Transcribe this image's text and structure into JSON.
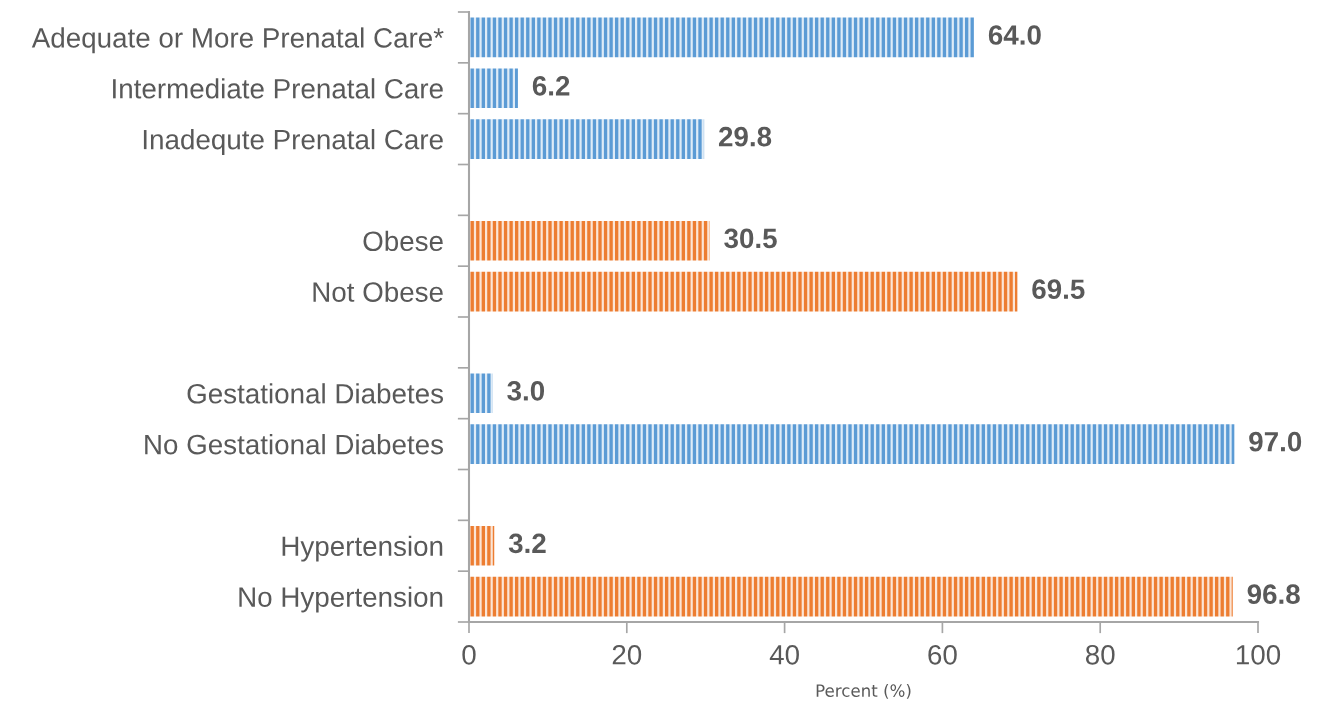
{
  "chart_data": {
    "type": "bar",
    "orientation": "horizontal",
    "categories": [
      "Adequate or More Prenatal Care*",
      "Intermediate Prenatal Care",
      "Inadequte Prenatal Care",
      null,
      "Obese",
      "Not Obese",
      null,
      "Gestational Diabetes",
      "No Gestational Diabetes",
      null,
      "Hypertension",
      "No Hypertension"
    ],
    "values": [
      64.0,
      6.2,
      29.8,
      null,
      30.5,
      69.5,
      null,
      3.0,
      97.0,
      null,
      3.2,
      96.8
    ],
    "value_labels": [
      "64.0",
      "6.2",
      "29.8",
      null,
      "30.5",
      "69.5",
      null,
      "3.0",
      "97.0",
      null,
      "3.2",
      "96.8"
    ],
    "colors": [
      "#5b9bd5",
      "#5b9bd5",
      "#5b9bd5",
      null,
      "#ed7d31",
      "#ed7d31",
      null,
      "#5b9bd5",
      "#5b9bd5",
      null,
      "#ed7d31",
      "#ed7d31"
    ],
    "xlim": [
      0,
      100
    ],
    "xticks": [
      0,
      20,
      40,
      60,
      80,
      100
    ],
    "xlabel": "Percent (%)"
  }
}
